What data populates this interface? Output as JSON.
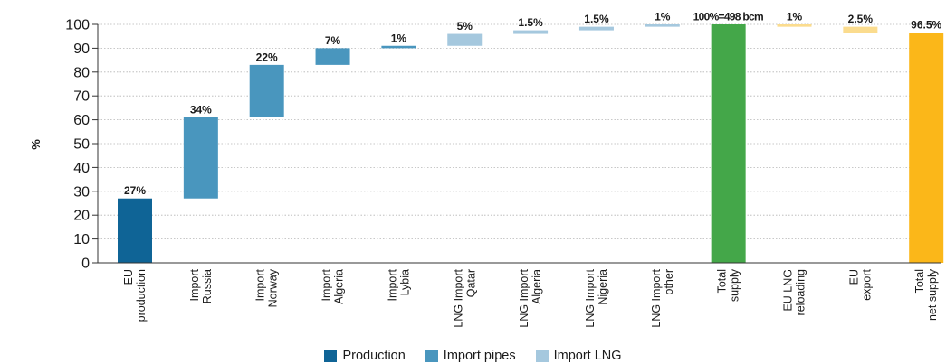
{
  "chart_data": {
    "type": "bar",
    "ylabel": "%",
    "ylim": [
      0,
      100
    ],
    "yticks": [
      "0",
      "10",
      "20",
      "30",
      "40",
      "50",
      "60",
      "70",
      "80",
      "90",
      "100"
    ],
    "grid": true,
    "legend_position": "bottom-center",
    "legend": [
      {
        "label": "Production",
        "color": "#0f6496"
      },
      {
        "label": "Import pipes",
        "color": "#4996be"
      },
      {
        "label": "Import LNG",
        "color": "#a5c8de"
      }
    ],
    "bars": [
      {
        "label": [
          "EU",
          "production"
        ],
        "start": 0,
        "end": 27,
        "value_label": "27%",
        "color": "#0f6496"
      },
      {
        "label": [
          "Import",
          "Russia"
        ],
        "start": 27,
        "end": 61,
        "value_label": "34%",
        "color": "#4996be"
      },
      {
        "label": [
          "Import",
          "Norway"
        ],
        "start": 61,
        "end": 83,
        "value_label": "22%",
        "color": "#4996be"
      },
      {
        "label": [
          "Import",
          "Algeria"
        ],
        "start": 83,
        "end": 90,
        "value_label": "7%",
        "color": "#4996be"
      },
      {
        "label": [
          "Import",
          "Lybia"
        ],
        "start": 90,
        "end": 91,
        "value_label": "1%",
        "color": "#4996be"
      },
      {
        "label": [
          "LNG Import",
          "Qatar"
        ],
        "start": 91,
        "end": 96,
        "value_label": "5%",
        "color": "#a5c8de"
      },
      {
        "label": [
          "LNG Import",
          "Algeria"
        ],
        "start": 96,
        "end": 97.5,
        "value_label": "1.5%",
        "color": "#a5c8de"
      },
      {
        "label": [
          "LNG Import",
          "Nigeria"
        ],
        "start": 97.5,
        "end": 99,
        "value_label": "1.5%",
        "color": "#a5c8de"
      },
      {
        "label": [
          "LNG Import",
          "other"
        ],
        "start": 99,
        "end": 100,
        "value_label": "1%",
        "color": "#a5c8de"
      },
      {
        "label": [
          "Total",
          "supply"
        ],
        "start": 0,
        "end": 100,
        "value_label": "100%=498 bcm",
        "color": "#44a749"
      },
      {
        "label": [
          "EU LNG",
          "reloading"
        ],
        "start": 99,
        "end": 100,
        "value_label": "1%",
        "color": "#fbdc8e"
      },
      {
        "label": [
          "EU",
          "export"
        ],
        "start": 96.5,
        "end": 99,
        "value_label": "2.5%",
        "color": "#fbdc8e"
      },
      {
        "label": [
          "Total",
          "net supply"
        ],
        "start": 0,
        "end": 96.5,
        "value_label": "96.5%",
        "color": "#fbb719"
      }
    ]
  }
}
